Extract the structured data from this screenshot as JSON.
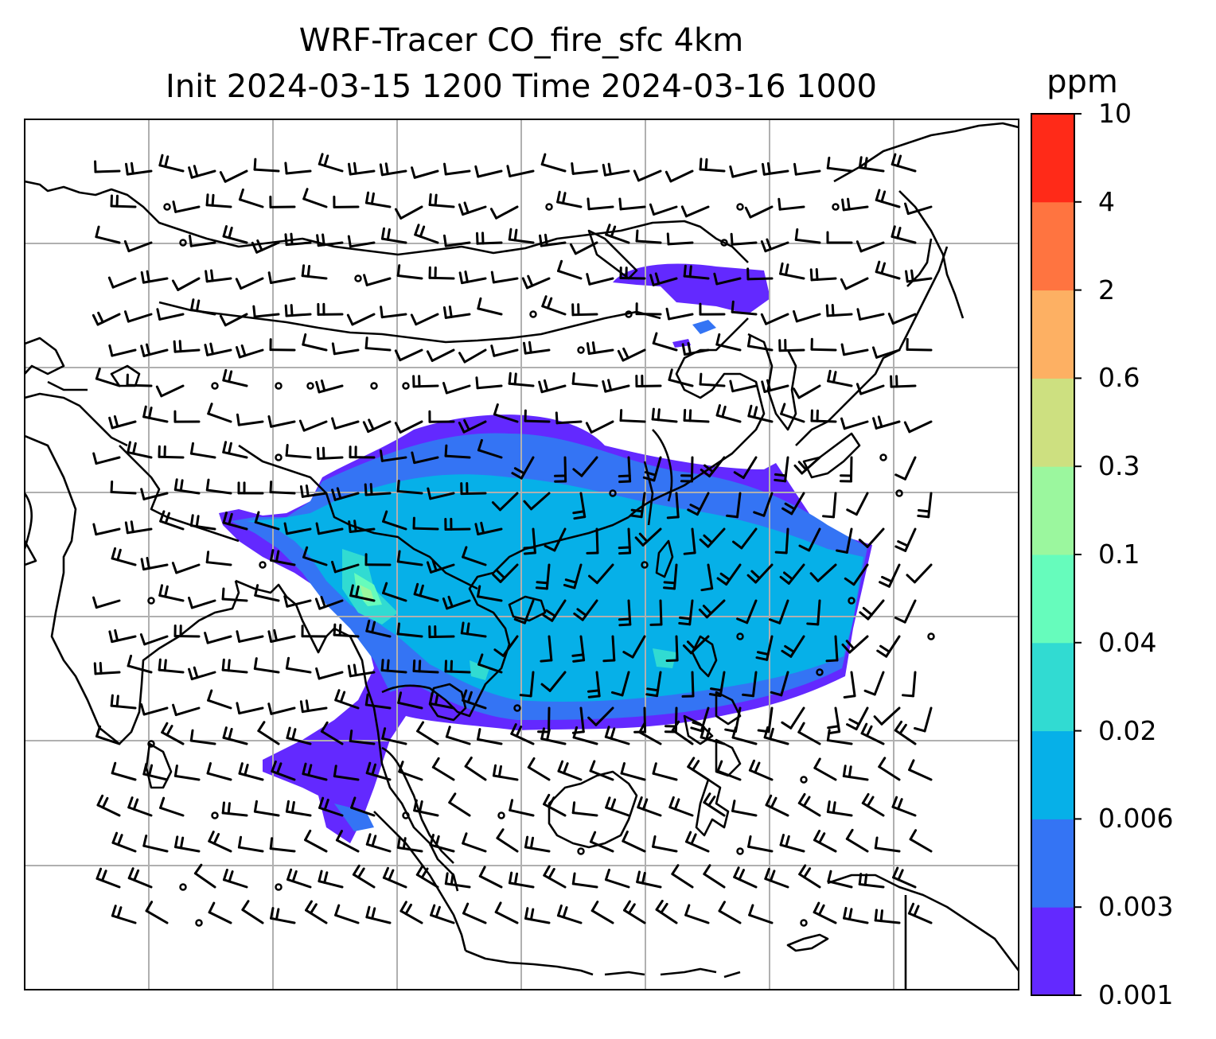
{
  "figure": {
    "title_line1": "WRF-Tracer CO_fire_sfc 4km",
    "title_line2": "Init 2024-03-15 1200 Time 2024-03-16 1000"
  },
  "colorbar": {
    "unit": "ppm",
    "levels": [
      "0.001",
      "0.003",
      "0.006",
      "0.02",
      "0.04",
      "0.1",
      "0.3",
      "0.6",
      "2",
      "4",
      "10"
    ],
    "colors": [
      "#6329ff",
      "#3474f4",
      "#06b0e8",
      "#31dbd2",
      "#66fcbc",
      "#9bf79e",
      "#cde080",
      "#fdb063",
      "#ff7440",
      "#ff2a18"
    ]
  },
  "map": {
    "background": "#ffffff",
    "coastline_color": "#000000",
    "gridline_color": "#b0b0b0",
    "barb_color": "#000000",
    "plume_color": "#6329ff"
  }
}
